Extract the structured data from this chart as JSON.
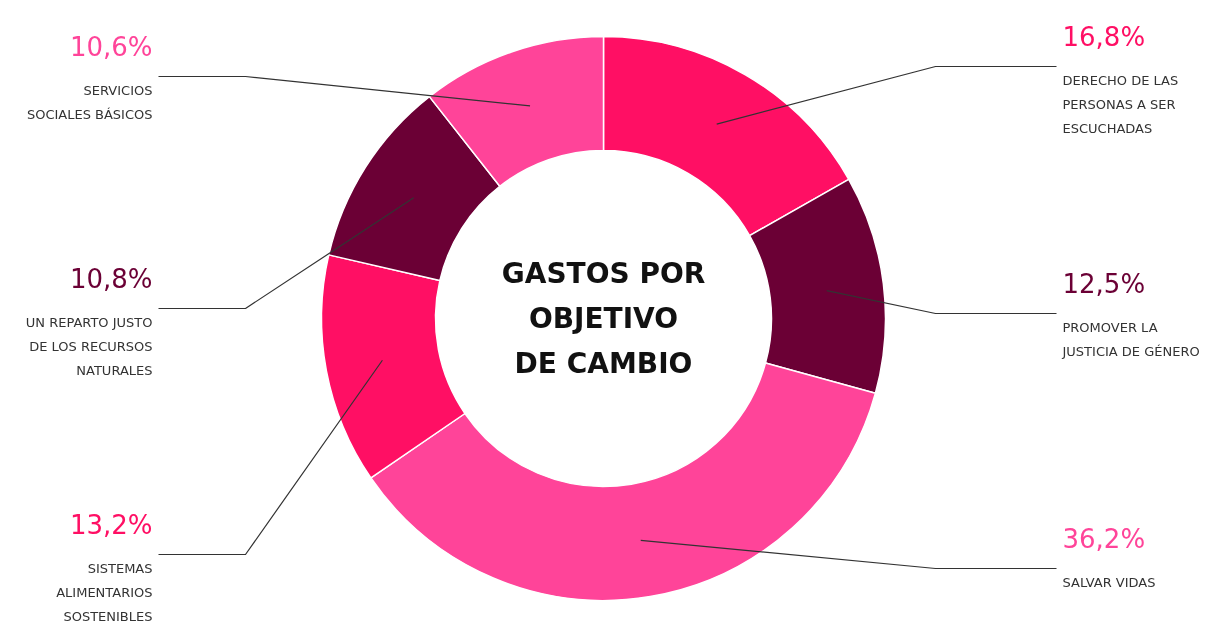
{
  "chart_data": {
    "type": "donut",
    "title": "GASTOS POR\nOBJETIVO\nDE CAMBIO",
    "categories": [
      "DERECHO DE LAS\nPERSONAS A SER\nESCUCHADAS",
      "PROMOVER LA\nJUSTICIA DE GÉNERO",
      "SALVAR VIDAS",
      "SISTEMAS\nALIMENTARIOS\nSOSTENIBLES",
      "UN REPARTO JUSTO\nDE LOS RECURSOS\nNATURALES",
      "SERVICIOS\nSOCIALES BÁSICOS"
    ],
    "values": [
      16.8,
      12.5,
      36.2,
      13.2,
      10.8,
      10.6
    ],
    "value_labels": [
      "16,8%",
      "12,5%",
      "36,2%",
      "13,2%",
      "10,8%",
      "10,6%"
    ],
    "colors": [
      "#ff0f64",
      "#6b0035",
      "#ff4499",
      "#ff0f64",
      "#6b0035",
      "#ff4499"
    ]
  }
}
